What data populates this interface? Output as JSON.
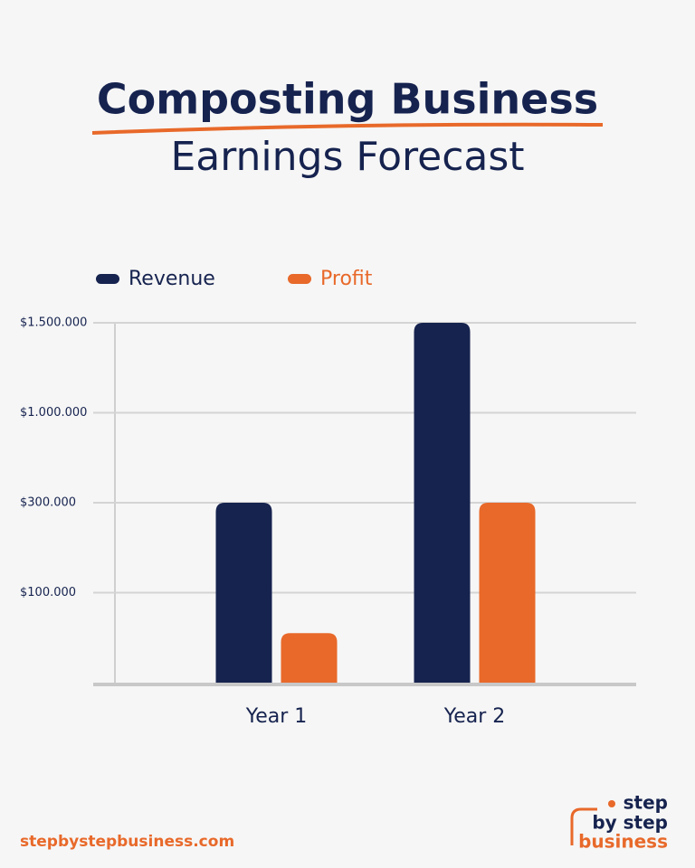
{
  "chart_data": {
    "type": "bar",
    "title": "Composting Business",
    "subtitle": "Earnings Forecast",
    "categories": [
      "Year 1",
      "Year 2"
    ],
    "series": [
      {
        "name": "Revenue",
        "color": "#16234f",
        "values": [
          300000,
          1500000
        ]
      },
      {
        "name": "Profit",
        "color": "#e8692a",
        "values": [
          55000,
          300000
        ]
      }
    ],
    "ylim": [
      0,
      1500000
    ],
    "yticks": [
      {
        "value": 100000,
        "label": "$100.000"
      },
      {
        "value": 300000,
        "label": "$300.000"
      },
      {
        "value": 1000000,
        "label": "$1.000.000"
      },
      {
        "value": 1500000,
        "label": "$1.500.000"
      }
    ],
    "grid": true,
    "legend": "top-left"
  },
  "footer": {
    "website": "stepbystepbusiness.com",
    "logo": [
      "step",
      "by step",
      "business"
    ]
  }
}
